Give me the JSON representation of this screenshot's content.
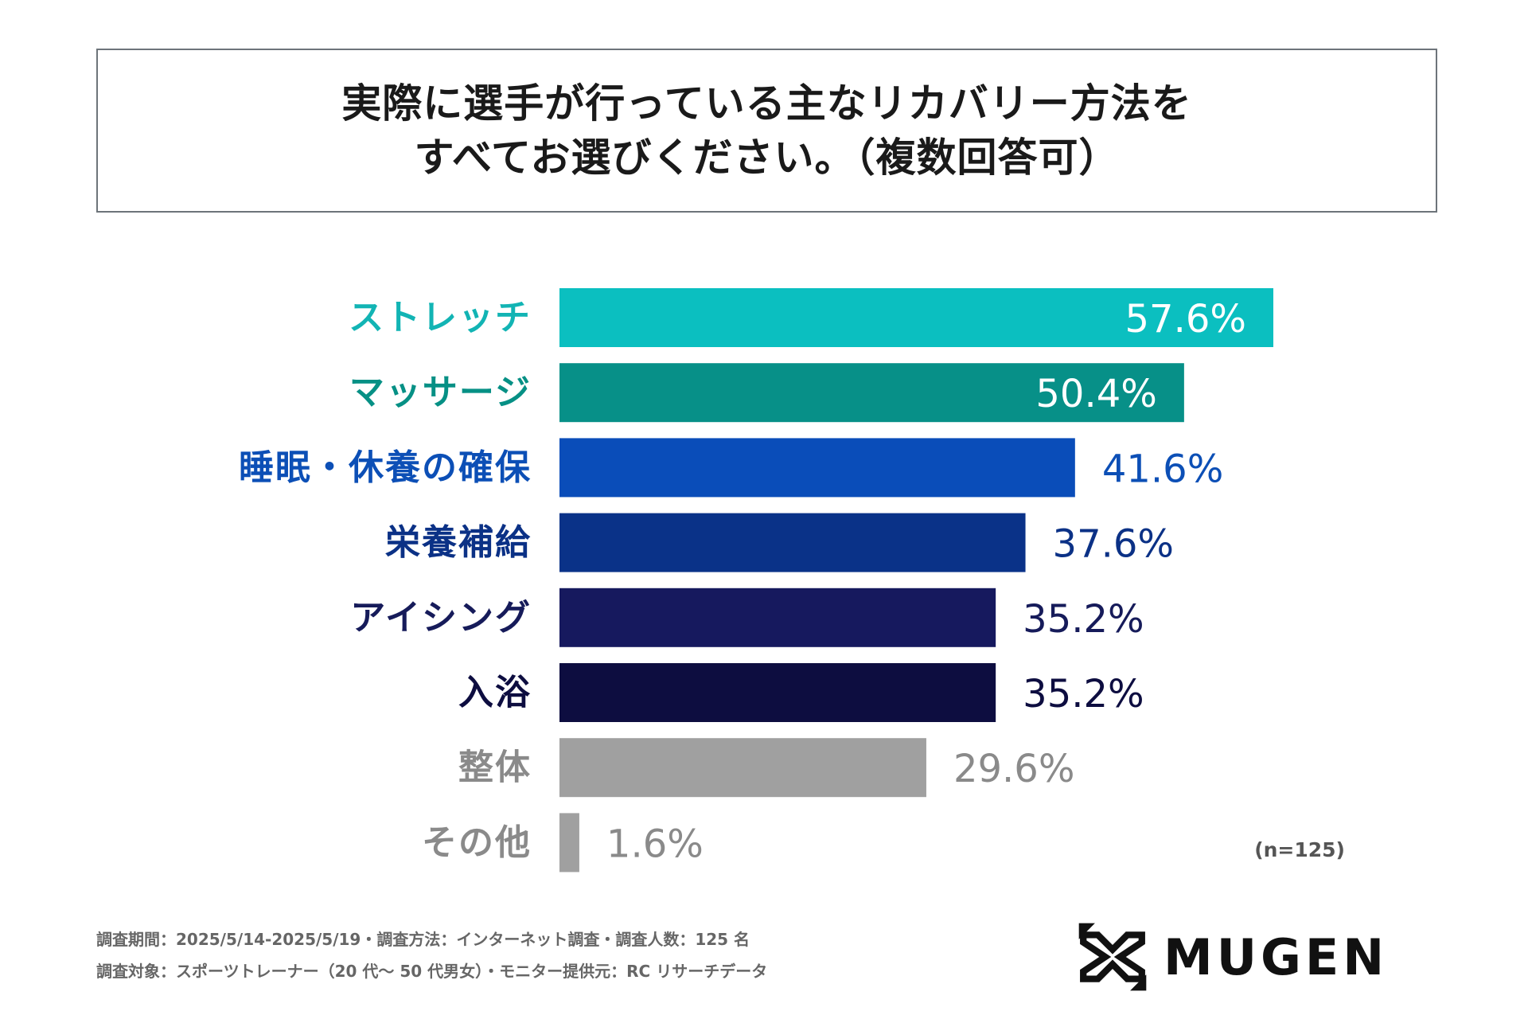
{
  "title": {
    "line1": "実際に選手が行っている主なリカバリー方法を",
    "line2": "すべてお選びください。（複数回答可）"
  },
  "chart_data": {
    "type": "bar",
    "orientation": "horizontal",
    "categories": [
      "ストレッチ",
      "マッサージ",
      "睡眠・休養の確保",
      "栄養補給",
      "アイシング",
      "入浴",
      "整体",
      "その他"
    ],
    "values": [
      57.6,
      50.4,
      41.6,
      37.6,
      35.2,
      35.2,
      29.6,
      1.6
    ],
    "value_labels": [
      "57.6%",
      "50.4%",
      "41.6%",
      "37.6%",
      "35.2%",
      "35.2%",
      "29.6%",
      "1.6%"
    ],
    "colors": [
      "#0bbfc0",
      "#079088",
      "#0a4db9",
      "#0a3288",
      "#16195e",
      "#0d0d40",
      "#a0a0a0",
      "#a0a0a0"
    ],
    "label_colors": [
      "#12b4b4",
      "#069085",
      "#0c4fb6",
      "#0b3186",
      "#161b5a",
      "#0d0d40",
      "#8a8a8a",
      "#8a8a8a"
    ],
    "xlim": [
      0,
      60
    ],
    "xlabel": "",
    "ylabel": "",
    "grid": false,
    "sample_size": "(n=125)"
  },
  "footer": {
    "line1": "調査期間：2025/5/14-2025/5/19・調査方法：インターネット調査・調査人数：125 名",
    "line2": "調査対象：スポーツトレーナー（20 代〜 50 代男女）・モニター提供元：RC リサーチデータ"
  },
  "logo": {
    "text": "MUGEN",
    "icon": "mugen-cross-arrows-icon"
  }
}
